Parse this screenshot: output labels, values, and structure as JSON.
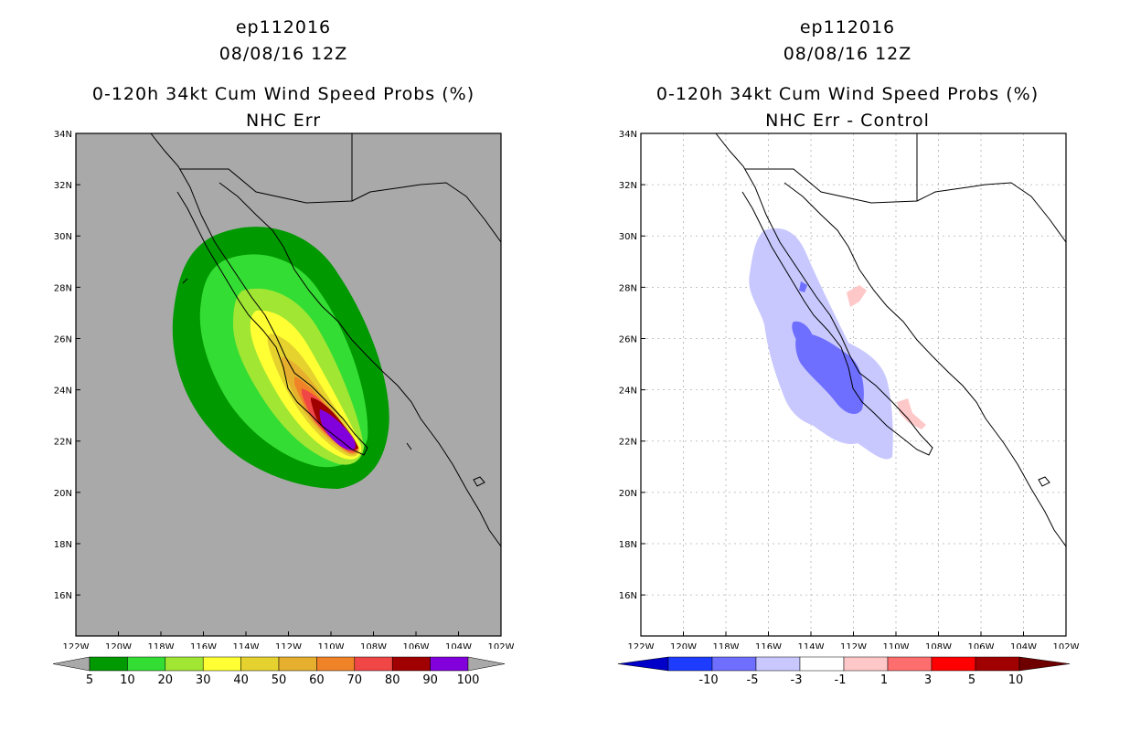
{
  "left_panel": {
    "storm_id": "ep112016",
    "datetime": "08/08/16 12Z",
    "product": "0-120h 34kt Cum Wind Speed Probs (%)",
    "subtitle": "NHC Err",
    "colorbar": {
      "labels": [
        "5",
        "10",
        "20",
        "30",
        "40",
        "50",
        "60",
        "70",
        "80",
        "90",
        "100"
      ],
      "colors": [
        "#009900",
        "#33dd33",
        "#a0e632",
        "#ffff33",
        "#e6d22e",
        "#e6af2e",
        "#f08228",
        "#f04646",
        "#a00000",
        "#8200dc"
      ]
    }
  },
  "right_panel": {
    "storm_id": "ep112016",
    "datetime": "08/08/16 12Z",
    "product": "0-120h 34kt Cum Wind Speed Probs (%)",
    "subtitle": "NHC Err - Control",
    "colorbar": {
      "labels": [
        "-10",
        "-5",
        "-3",
        "-1",
        "1",
        "3",
        "5",
        "10"
      ],
      "colors": [
        "#0000c8",
        "#1e3cff",
        "#6e6eff",
        "#c8c8ff",
        "#ffffff",
        "#ffc8c8",
        "#ff6e6e",
        "#ff0000",
        "#a00000",
        "#6e0000"
      ]
    }
  },
  "axes": {
    "lat_labels": [
      "34N",
      "32N",
      "30N",
      "28N",
      "26N",
      "24N",
      "22N",
      "20N",
      "18N",
      "16N"
    ],
    "lon_labels": [
      "122W",
      "120W",
      "118W",
      "116W",
      "114W",
      "112W",
      "110W",
      "108W",
      "106W",
      "104W",
      "102W"
    ]
  },
  "colors": {
    "map_bg_left": "#a9a9a9",
    "coast": "#000000"
  }
}
